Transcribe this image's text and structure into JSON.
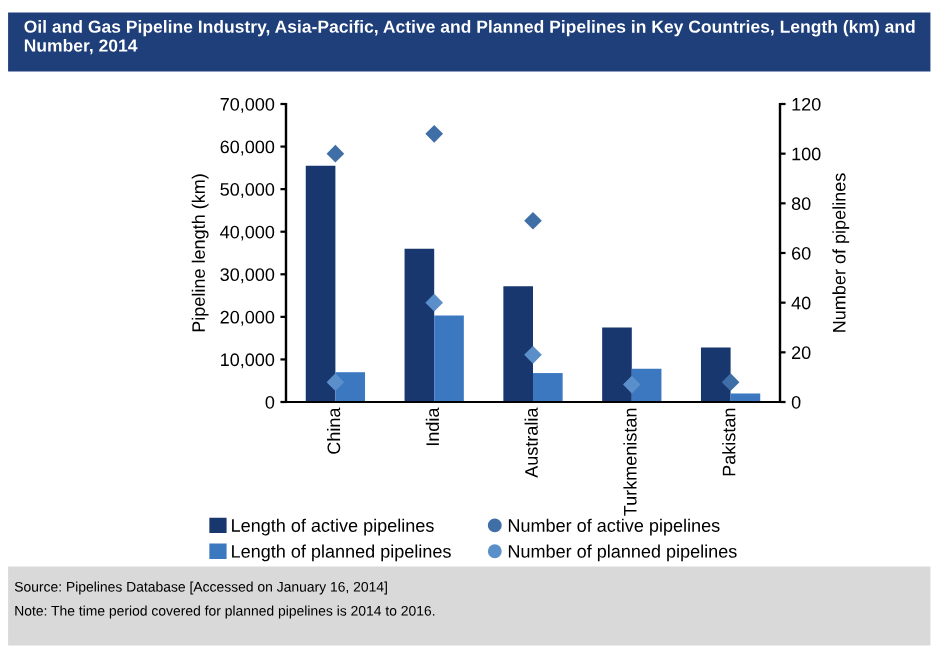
{
  "chart_data": {
    "type": "bar",
    "title": "Oil and Gas Pipeline Industry, Asia-Pacific, Active and Planned Pipelines in Key Countries, Length (km) and Number, 2014",
    "categories": [
      "China",
      "India",
      "Australia",
      "Turkmenistan",
      "Pakistan"
    ],
    "series": [
      {
        "name": "Length of active pipelines",
        "color": "#17376e",
        "values": [
          55500,
          36000,
          27200,
          17500,
          12800
        ]
      },
      {
        "name": "Length of planned pipelines",
        "color": "#3c78c0",
        "values": [
          7000,
          20300,
          6800,
          7800,
          2000
        ]
      },
      {
        "name": "Number of active pipelines",
        "type": "scatter",
        "axis": "y2",
        "color": "#3f6fa6",
        "values": [
          100,
          108,
          73,
          null,
          8
        ]
      },
      {
        "name": "Number of planned pipelines",
        "type": "scatter",
        "axis": "y2",
        "color": "#5b8fc9",
        "values": [
          8,
          40,
          19,
          7,
          null
        ]
      }
    ],
    "ylabel": "Pipeline length (km)",
    "y2label": "Number of pipelines",
    "ylim": [
      0,
      70000
    ],
    "yticks": [
      {
        "value": 0,
        "label": "0"
      },
      {
        "value": 10000,
        "label": "10,000"
      },
      {
        "value": 20000,
        "label": "20,000"
      },
      {
        "value": 30000,
        "label": "30,000"
      },
      {
        "value": 40000,
        "label": "40,000"
      },
      {
        "value": 50000,
        "label": "50,000"
      },
      {
        "value": 60000,
        "label": "60,000"
      },
      {
        "value": 70000,
        "label": "70,000"
      }
    ],
    "y2lim": [
      0,
      120
    ],
    "y2ticks": [
      0,
      20,
      40,
      60,
      80,
      100,
      120
    ],
    "marker": "diamond",
    "legend": "bottom",
    "grid": false,
    "annotations": [
      "Source: Pipelines Database [Accessed on January 16, 2014]",
      "Note: The time period covered for planned pipelines is 2014 to 2016."
    ]
  }
}
